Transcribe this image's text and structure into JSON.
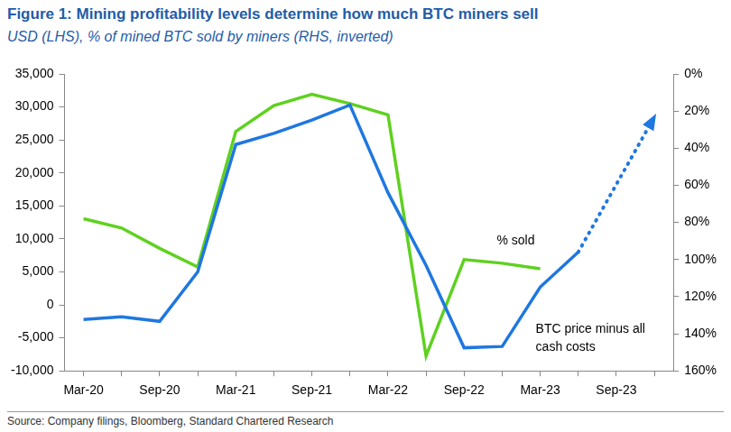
{
  "chart_data": {
    "type": "line",
    "title": "Figure 1: Mining profitability levels determine how much BTC miners sell",
    "subtitle": "USD (LHS), % of mined BTC sold by miners (RHS, inverted)",
    "source": "Source: Company filings, Bloomberg, Standard Chartered Research",
    "categories": [
      "Mar-20",
      null,
      "Sep-20",
      null,
      "Mar-21",
      null,
      "Sep-21",
      null,
      "Mar-22",
      null,
      "Sep-22",
      null,
      "Mar-23",
      null,
      "Sep-23",
      null
    ],
    "series": [
      {
        "name": "BTC price minus all cash costs",
        "color": "#1f77e0",
        "values": [
          -2200,
          -1800,
          -2500,
          5000,
          24300,
          26000,
          28000,
          30300,
          17000,
          6000,
          -6500,
          -6300,
          2700,
          8000,
          null,
          null
        ]
      },
      {
        "color": "#1f77e0",
        "line_style": "dotted",
        "marker": "arrow",
        "values": [
          null,
          null,
          null,
          null,
          null,
          null,
          null,
          null,
          null,
          null,
          null,
          null,
          null,
          8000,
          null,
          28500
        ]
      },
      {
        "name": "% sold",
        "color": "#5fd11f",
        "axis": "y2",
        "values": [
          78,
          83,
          94,
          104,
          31,
          17,
          11,
          16,
          22,
          152,
          100,
          102,
          105,
          null,
          null,
          null
        ]
      }
    ],
    "ylim": [
      -10000,
      35000
    ],
    "yticks": [
      {
        "value": -10000,
        "label": "-10,000"
      },
      {
        "value": -5000,
        "label": "-5,000"
      },
      0,
      {
        "value": 5000,
        "label": "5,000"
      },
      {
        "value": 10000,
        "label": "10,000"
      },
      {
        "value": 15000,
        "label": "15,000"
      },
      {
        "value": 20000,
        "label": "20,000"
      },
      {
        "value": 25000,
        "label": "25,000"
      },
      {
        "value": 30000,
        "label": "30,000"
      },
      {
        "value": 35000,
        "label": "35,000"
      }
    ],
    "y2lim": [
      160,
      0
    ],
    "y2ticks": [
      {
        "value": 0,
        "label": "0%"
      },
      {
        "value": 20,
        "label": "20%"
      },
      {
        "value": 40,
        "label": "40%"
      },
      {
        "value": 60,
        "label": "60%"
      },
      {
        "value": 80,
        "label": "80%"
      },
      {
        "value": 100,
        "label": "100%"
      },
      {
        "value": 120,
        "label": "120%"
      },
      {
        "value": 140,
        "label": "140%"
      },
      {
        "value": 160,
        "label": "160%"
      }
    ],
    "grid": false
  }
}
